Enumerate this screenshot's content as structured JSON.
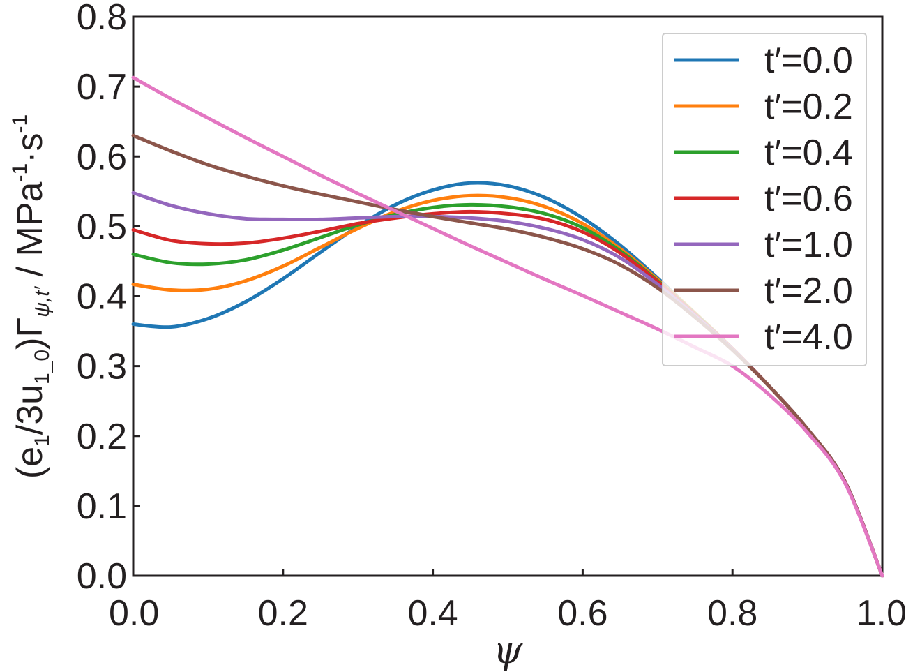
{
  "chart_data": {
    "type": "line",
    "xlabel": "ψ",
    "ylabel": {
      "prefix": "(e",
      "sub1": "1",
      "mid": "/3u",
      "sub2": "1_0",
      "close": ")Γ",
      "sub3": "ψ,t′",
      "unit": " / MPa",
      "sup1": "-1",
      "dot": "·s",
      "sup2": "-1"
    },
    "xlim": [
      0,
      1
    ],
    "ylim": [
      0,
      0.8
    ],
    "xticks": [
      "0.0",
      "0.2",
      "0.4",
      "0.6",
      "0.8",
      "1.0"
    ],
    "yticks": [
      "0.0",
      "0.1",
      "0.2",
      "0.3",
      "0.4",
      "0.5",
      "0.6",
      "0.7",
      "0.8"
    ],
    "grid": false,
    "legend_position": "top-right",
    "x": [
      0,
      0.05,
      0.1,
      0.15,
      0.2,
      0.25,
      0.3,
      0.35,
      0.4,
      0.45,
      0.5,
      0.55,
      0.6,
      0.65,
      0.7,
      0.75,
      0.8,
      0.85,
      0.9,
      0.95,
      1.0
    ],
    "series": [
      {
        "name": "t′=0.0",
        "color": "#1f77b4",
        "values": [
          0.36,
          0.356,
          0.368,
          0.392,
          0.425,
          0.463,
          0.5,
          0.531,
          0.552,
          0.562,
          0.558,
          0.541,
          0.512,
          0.473,
          0.426,
          0.375,
          0.325,
          0.27,
          0.21,
          0.135,
          0.0
        ]
      },
      {
        "name": "t′=0.2",
        "color": "#ff7f0e",
        "values": [
          0.417,
          0.409,
          0.41,
          0.422,
          0.443,
          0.47,
          0.497,
          0.521,
          0.537,
          0.544,
          0.541,
          0.528,
          0.504,
          0.468,
          0.424,
          0.376,
          0.325,
          0.27,
          0.21,
          0.135,
          0.0
        ]
      },
      {
        "name": "t′=0.4",
        "color": "#2ca02c",
        "values": [
          0.46,
          0.448,
          0.446,
          0.452,
          0.466,
          0.484,
          0.502,
          0.517,
          0.527,
          0.531,
          0.528,
          0.518,
          0.498,
          0.465,
          0.422,
          0.375,
          0.325,
          0.27,
          0.21,
          0.135,
          0.0
        ]
      },
      {
        "name": "t′=0.6",
        "color": "#d62728",
        "values": [
          0.495,
          0.48,
          0.475,
          0.476,
          0.483,
          0.493,
          0.504,
          0.512,
          0.518,
          0.521,
          0.518,
          0.51,
          0.492,
          0.462,
          0.421,
          0.374,
          0.325,
          0.27,
          0.21,
          0.135,
          0.0
        ]
      },
      {
        "name": "t′=1.0",
        "color": "#9467bd",
        "values": [
          0.548,
          0.53,
          0.518,
          0.511,
          0.51,
          0.51,
          0.512,
          0.514,
          0.514,
          0.512,
          0.507,
          0.497,
          0.481,
          0.455,
          0.417,
          0.372,
          0.324,
          0.27,
          0.21,
          0.135,
          0.0
        ]
      },
      {
        "name": "t′=2.0",
        "color": "#8c564b",
        "values": [
          0.63,
          0.608,
          0.588,
          0.572,
          0.558,
          0.546,
          0.535,
          0.524,
          0.514,
          0.505,
          0.496,
          0.484,
          0.468,
          0.445,
          0.412,
          0.37,
          0.323,
          0.27,
          0.21,
          0.135,
          0.0
        ]
      },
      {
        "name": "t′=4.0",
        "color": "#e377c2",
        "values": [
          0.713,
          0.683,
          0.655,
          0.627,
          0.6,
          0.573,
          0.547,
          0.522,
          0.497,
          0.472,
          0.448,
          0.424,
          0.401,
          0.377,
          0.353,
          0.327,
          0.3,
          0.258,
          0.205,
          0.133,
          0.0
        ]
      }
    ]
  }
}
